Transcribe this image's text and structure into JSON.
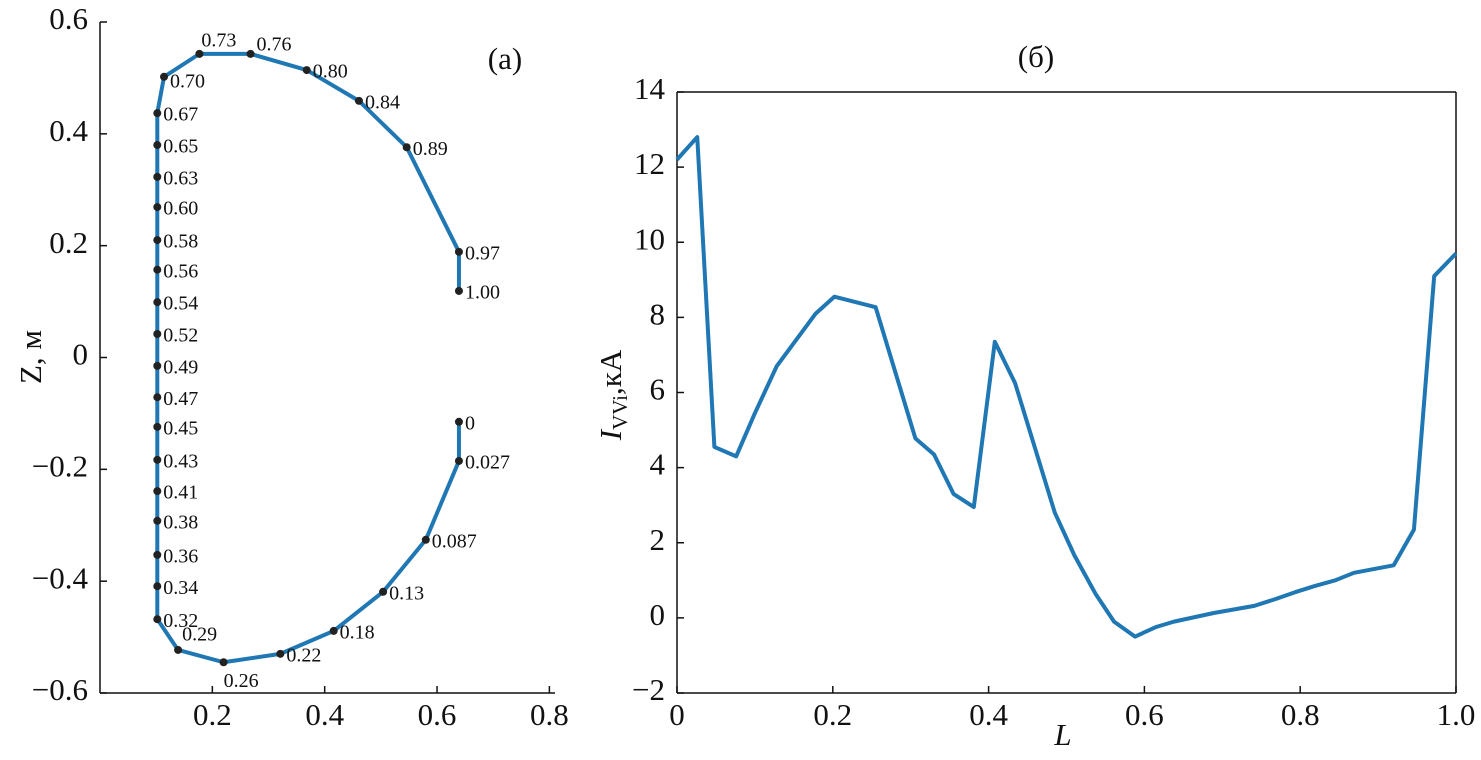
{
  "chart_data": [
    {
      "type": "line",
      "annotation": "(a)",
      "ylabel": "Z, м",
      "series": [
        {
          "color": "#1f77b4",
          "x": [
            0.639,
            0.639,
            0.58,
            0.504,
            0.416,
            0.321,
            0.22,
            0.139,
            0.102,
            0.102,
            0.102,
            0.102,
            0.102,
            0.102,
            0.102,
            0.102,
            0.102,
            0.102,
            0.102,
            0.102,
            0.102,
            0.102,
            0.102,
            0.102,
            0.102,
            0.114,
            0.177,
            0.268,
            0.368,
            0.461,
            0.546,
            0.639,
            0.639
          ],
          "values": [
            -0.115,
            -0.185,
            -0.326,
            -0.419,
            -0.489,
            -0.53,
            -0.545,
            -0.523,
            -0.468,
            -0.409,
            -0.353,
            -0.292,
            -0.239,
            -0.183,
            -0.124,
            -0.071,
            -0.015,
            0.042,
            0.099,
            0.157,
            0.21,
            0.269,
            0.323,
            0.38,
            0.437,
            0.502,
            0.543,
            0.543,
            0.514,
            0.459,
            0.376,
            0.189,
            0.119
          ],
          "point_labels": [
            "0",
            "0.027",
            "0.087",
            "0.13",
            "0.18",
            "0.22",
            "0.26",
            "0.29",
            "0.32",
            "0.34",
            "0.36",
            "0.38",
            "0.41",
            "0.43",
            "0.45",
            "0.47",
            "0.49",
            "0.52",
            "0.54",
            "0.56",
            "0.58",
            "0.60",
            "0.63",
            "0.65",
            "0.67",
            "0.70",
            "0.73",
            "0.76",
            "0.80",
            "0.84",
            "0.89",
            "0.97",
            "1.00"
          ]
        }
      ],
      "xlim": [
        0,
        0.81
      ],
      "ylim": [
        -0.6,
        0.6
      ],
      "xticks": [
        0.2,
        0.4,
        0.6,
        0.8
      ],
      "yticks": [
        {
          "value": -0.6,
          "label": "−0.6"
        },
        {
          "value": -0.4,
          "label": "−0.4"
        },
        {
          "value": -0.2,
          "label": "−0.2"
        },
        0,
        0.2,
        0.4,
        0.6
      ]
    },
    {
      "type": "line",
      "title": "(б)",
      "xlabel": "L",
      "ylabel": "I",
      "ylabel_sub": "VVi",
      "ylabel_unit": ",кА",
      "series": [
        {
          "color": "#1f77b4",
          "x": [
            0,
            0.026,
            0.048,
            0.076,
            0.1,
            0.128,
            0.178,
            0.202,
            0.255,
            0.306,
            0.33,
            0.355,
            0.381,
            0.408,
            0.434,
            0.485,
            0.51,
            0.537,
            0.561,
            0.588,
            0.614,
            0.638,
            0.689,
            0.741,
            0.768,
            0.793,
            0.819,
            0.845,
            0.869,
            0.92,
            0.946,
            0.972,
            1.0
          ],
          "values": [
            12.2,
            12.8,
            4.55,
            4.3,
            5.45,
            6.7,
            8.1,
            8.55,
            8.27,
            4.78,
            4.35,
            3.3,
            2.95,
            7.35,
            6.25,
            2.8,
            1.67,
            0.65,
            -0.1,
            -0.5,
            -0.25,
            -0.1,
            0.13,
            0.32,
            0.5,
            0.68,
            0.85,
            1.0,
            1.2,
            1.4,
            2.35,
            9.1,
            9.7
          ]
        }
      ],
      "xlim": [
        0,
        1
      ],
      "ylim": [
        -2,
        14
      ],
      "xticks": [
        0,
        0.2,
        0.4,
        0.6,
        0.8,
        {
          "value": 1.0,
          "label": "1.0"
        }
      ],
      "yticks": [
        {
          "value": -2,
          "label": "−2"
        },
        0,
        2,
        4,
        6,
        8,
        10,
        12,
        14
      ]
    }
  ]
}
